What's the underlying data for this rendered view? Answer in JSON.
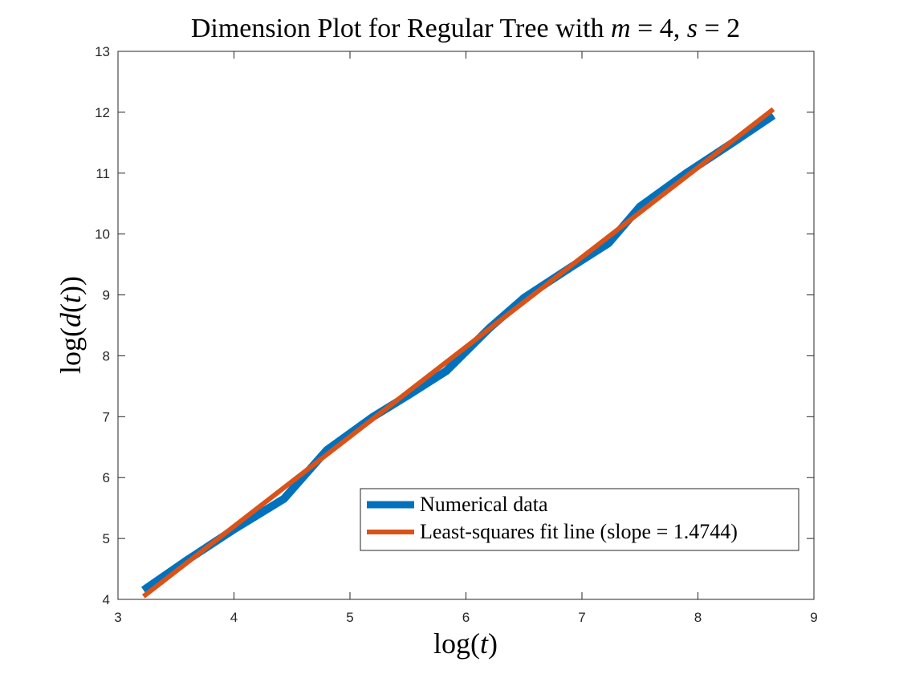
{
  "chart_data": {
    "type": "line",
    "title": "Dimension Plot for Regular Tree with m = 4, s = 2",
    "xlabel": "log(t)",
    "ylabel": "log(d(t))",
    "xlim": [
      3,
      9
    ],
    "ylim": [
      4,
      13
    ],
    "xticks": [
      3,
      4,
      5,
      6,
      7,
      8,
      9
    ],
    "yticks": [
      4,
      5,
      6,
      7,
      8,
      9,
      10,
      11,
      12,
      13
    ],
    "grid": false,
    "legend_position": "lower-right",
    "series": [
      {
        "name": "Numerical data",
        "color": "#0072BD",
        "x": [
          3.22,
          3.6,
          4.0,
          4.43,
          4.8,
          5.2,
          5.5,
          5.83,
          6.2,
          6.5,
          6.9,
          7.23,
          7.5,
          7.9,
          8.3,
          8.65
        ],
        "y": [
          4.15,
          4.65,
          5.15,
          5.65,
          6.45,
          7.0,
          7.35,
          7.75,
          8.45,
          8.95,
          9.45,
          9.85,
          10.45,
          11.0,
          11.5,
          11.95
        ]
      },
      {
        "name": "Least-squares fit line (slope = 1.4744)",
        "color": "#D95319",
        "x": [
          3.22,
          8.65
        ],
        "y": [
          4.05,
          12.05
        ]
      }
    ]
  }
}
